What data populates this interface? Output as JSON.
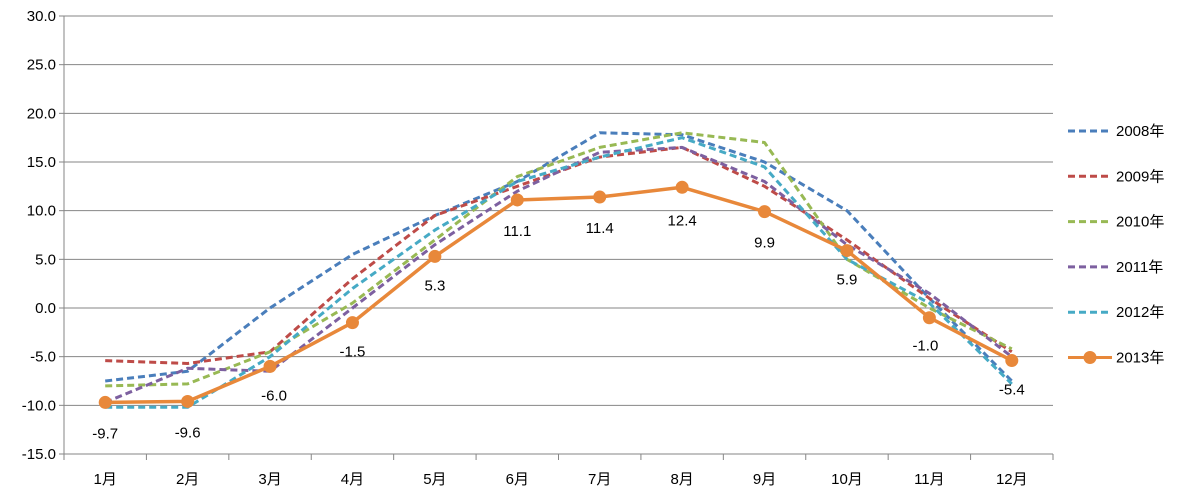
{
  "chart_data": {
    "type": "line",
    "categories": [
      "1月",
      "2月",
      "3月",
      "4月",
      "5月",
      "6月",
      "7月",
      "8月",
      "9月",
      "10月",
      "11月",
      "12月"
    ],
    "ylim": [
      -15,
      30
    ],
    "yticks": [
      "30.0",
      "25.0",
      "20.0",
      "15.0",
      "10.0",
      "5.0",
      "0.0",
      "-5.0",
      "-10.0",
      "-15.0"
    ],
    "grid": true,
    "legend_position": "right",
    "series": [
      {
        "name": "2008年",
        "color": "#4a7ebb",
        "dashed": true,
        "values": [
          -7.5,
          -6.5,
          0.0,
          5.5,
          9.5,
          13.0,
          18.0,
          17.8,
          15.0,
          10.0,
          1.0,
          -7.5
        ]
      },
      {
        "name": "2009年",
        "color": "#be4b48",
        "dashed": true,
        "values": [
          -5.4,
          -5.7,
          -4.5,
          3.0,
          9.5,
          12.5,
          15.5,
          16.5,
          12.5,
          7.0,
          1.0,
          -4.5
        ]
      },
      {
        "name": "2010年",
        "color": "#98b954",
        "dashed": true,
        "values": [
          -8.0,
          -7.8,
          -4.5,
          0.5,
          7.0,
          13.5,
          16.5,
          18.0,
          17.0,
          5.0,
          0.0,
          -4.2
        ]
      },
      {
        "name": "2011年",
        "color": "#7d60a0",
        "dashed": true,
        "values": [
          -9.7,
          -6.2,
          -6.5,
          0.0,
          6.5,
          12.0,
          16.0,
          16.5,
          13.0,
          6.5,
          1.5,
          -5.0
        ]
      },
      {
        "name": "2012年",
        "color": "#46aac5",
        "dashed": true,
        "values": [
          -10.2,
          -10.2,
          -5.0,
          2.0,
          8.0,
          13.0,
          15.5,
          17.5,
          14.5,
          5.0,
          0.5,
          -7.8
        ]
      },
      {
        "name": "2013年",
        "color": "#e8883a",
        "dashed": false,
        "markers": true,
        "values": [
          -9.7,
          -9.6,
          -6.0,
          -1.5,
          5.3,
          11.1,
          11.4,
          12.4,
          9.9,
          5.9,
          -1.0,
          -5.4
        ],
        "labels": [
          "-9.7",
          "-9.6",
          "-6.0",
          "-1.5",
          "5.3",
          "11.1",
          "11.4",
          "12.4",
          "9.9",
          "5.9",
          "-1.0",
          "-5.4"
        ]
      }
    ]
  }
}
